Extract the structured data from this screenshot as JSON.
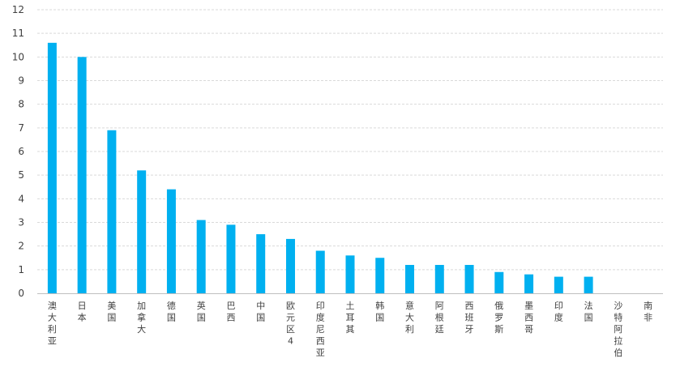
{
  "chart_data": {
    "type": "bar",
    "title": "",
    "xlabel": "",
    "ylabel": "",
    "ylim": [
      0,
      12
    ],
    "yticks": [
      0,
      1,
      2,
      3,
      4,
      5,
      6,
      7,
      8,
      9,
      10,
      11,
      12
    ],
    "grid": true,
    "legend": "none",
    "bar_color": "#00B0F0",
    "grid_color": "#D9D9D9",
    "categories": [
      "澳大利亚",
      "日本",
      "美国",
      "加拿大",
      "德国",
      "英国",
      "巴西",
      "中国",
      "欧元区4",
      "印度尼西亚",
      "土耳其",
      "韩国",
      "意大利",
      "阿根廷",
      "西班牙",
      "俄罗斯",
      "墨西哥",
      "印度",
      "法国",
      "沙特阿拉伯",
      "南非"
    ],
    "values": [
      10.6,
      10.0,
      6.9,
      5.2,
      4.4,
      3.1,
      2.9,
      2.5,
      2.3,
      1.8,
      1.6,
      1.5,
      1.2,
      1.2,
      1.2,
      0.9,
      0.8,
      0.7,
      0.7,
      0.0,
      0.0
    ]
  }
}
